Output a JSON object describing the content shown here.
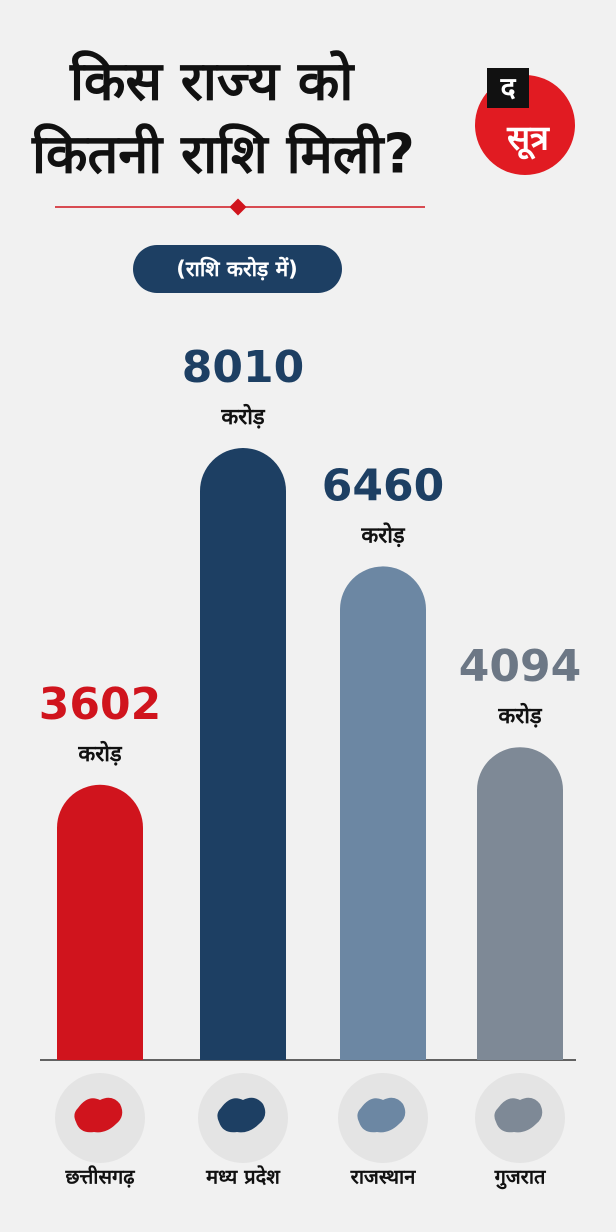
{
  "logo": {
    "top": "द",
    "main": "सूत्र"
  },
  "chart_data": {
    "type": "bar",
    "title": [
      "किस राज्य को",
      "कितनी राशि मिली?"
    ],
    "subtitle": "(राशि करोड़ में)",
    "unit_label": "करोड़",
    "categories": [
      "छत्तीसगढ़",
      "मध्य प्रदेश",
      "राजस्थान",
      "गुजरात"
    ],
    "values": [
      3602,
      8010,
      6460,
      4094
    ],
    "colors": [
      "#d0141d",
      "#1d3f63",
      "#6c87a3",
      "#7e8996"
    ],
    "label_colors": [
      "#d0141d",
      "#1d3f63",
      "#1d3f63",
      "#6c7785"
    ]
  }
}
